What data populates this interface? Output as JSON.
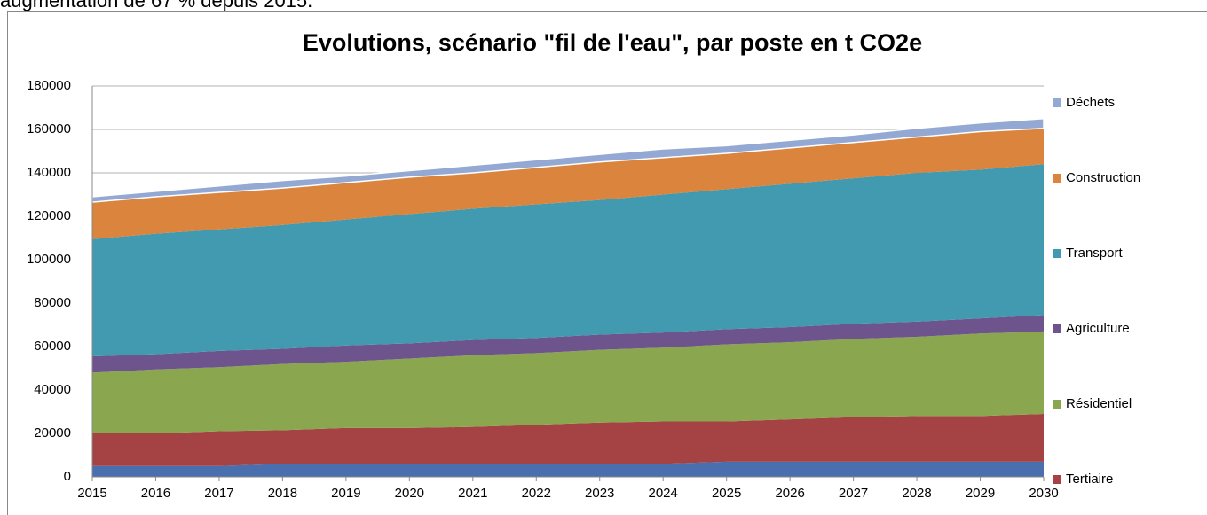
{
  "page_text": "augmentation de 67 % depuis 2015.",
  "chart_data": {
    "type": "stacked_area",
    "title": "Evolutions, scénario \"fil de l'eau\", par poste en t CO2e",
    "x": [
      2015,
      2016,
      2017,
      2018,
      2019,
      2020,
      2021,
      2022,
      2023,
      2024,
      2025,
      2026,
      2027,
      2028,
      2029,
      2030
    ],
    "xlim": [
      2015,
      2030
    ],
    "ylim": [
      0,
      180000
    ],
    "yticks": [
      0,
      20000,
      40000,
      60000,
      80000,
      100000,
      120000,
      140000,
      160000,
      180000
    ],
    "grid": true,
    "legend": "right",
    "series": [
      {
        "color": "#4a6fae",
        "values": [
          5000,
          5000,
          5000,
          6000,
          6000,
          6000,
          6000,
          6000,
          6000,
          6000,
          7000,
          7000,
          7000,
          7000,
          7000,
          7000
        ]
      },
      {
        "name": "Tertiaire",
        "color": "#a54344",
        "values": [
          15000,
          15000,
          16000,
          15500,
          16500,
          16500,
          17000,
          18000,
          19000,
          19500,
          18500,
          19500,
          20500,
          21000,
          21000,
          22000
        ]
      },
      {
        "name": "Résidentiel",
        "color": "#8aa64f",
        "values": [
          28000,
          29500,
          29500,
          30500,
          30500,
          32000,
          33000,
          33000,
          33500,
          34000,
          35500,
          35500,
          36000,
          36500,
          38000,
          38000
        ]
      },
      {
        "name": "Agriculture",
        "color": "#6e548c",
        "values": [
          7500,
          7000,
          7500,
          7000,
          7500,
          7000,
          7000,
          7000,
          7000,
          7000,
          7000,
          7000,
          7000,
          7000,
          7000,
          7500
        ]
      },
      {
        "name": "Transport",
        "color": "#419aaf",
        "values": [
          54000,
          55500,
          56000,
          57000,
          58000,
          59500,
          60500,
          61500,
          62000,
          63500,
          64500,
          66000,
          67000,
          68500,
          68500,
          69500
        ]
      },
      {
        "name": "Construction",
        "color": "#da843d",
        "values": [
          17000,
          17000,
          17000,
          17000,
          17000,
          17000,
          16500,
          17000,
          17500,
          17000,
          16500,
          16500,
          16500,
          16500,
          17500,
          16500
        ]
      },
      {
        "name": "Déchets",
        "color": "#93a9d3",
        "values": [
          2500,
          2500,
          3000,
          3500,
          3000,
          3000,
          3500,
          3500,
          3500,
          4000,
          3500,
          3500,
          3500,
          4000,
          4000,
          4500
        ]
      }
    ]
  }
}
